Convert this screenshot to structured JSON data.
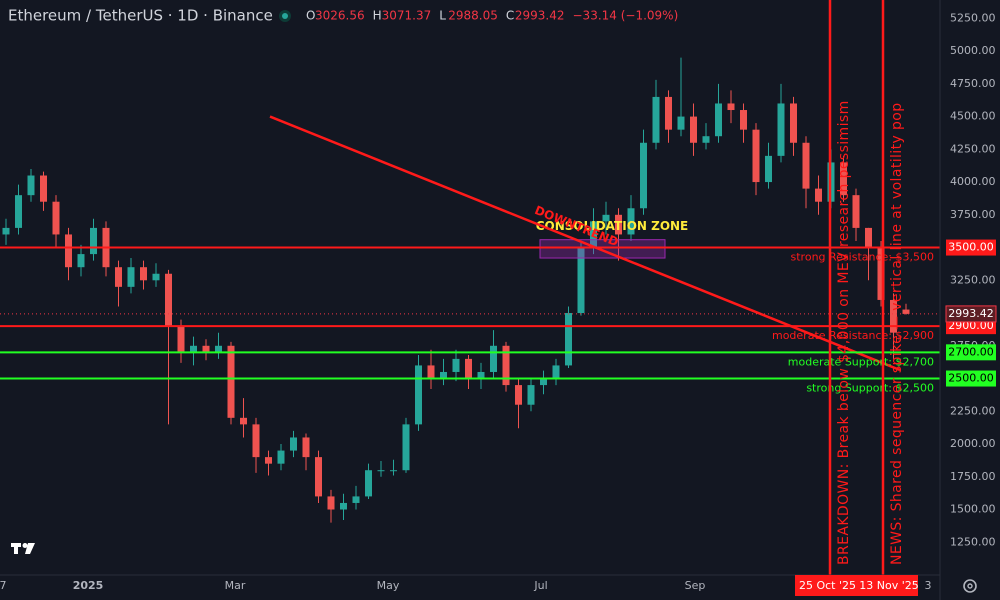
{
  "header": {
    "symbol": "Ethereum / TetherUS · 1D · Binance",
    "ohlc": [
      {
        "label": "O",
        "value": "3026.56"
      },
      {
        "label": "H",
        "value": "3071.37"
      },
      {
        "label": "L",
        "value": "2988.05"
      },
      {
        "label": "C",
        "value": "2993.42"
      }
    ],
    "change": "−33.14 (−1.09%)"
  },
  "chart_data": {
    "type": "candlestick",
    "ylim": [
      1000,
      5390
    ],
    "yticks": [
      {
        "value": 5250,
        "label": "5250.00"
      },
      {
        "value": 5000,
        "label": "5000.00"
      },
      {
        "value": 4750,
        "label": "4750.00"
      },
      {
        "value": 4500,
        "label": "4500.00"
      },
      {
        "value": 4250,
        "label": "4250.00"
      },
      {
        "value": 4000,
        "label": "4000.00"
      },
      {
        "value": 3750,
        "label": "3750.00"
      },
      {
        "value": 3250,
        "label": "3250.00"
      },
      {
        "value": 2750,
        "label": "2750.00"
      },
      {
        "value": 2250,
        "label": "2250.00"
      },
      {
        "value": 2000,
        "label": "2000.00"
      },
      {
        "value": 1750,
        "label": "1750.00"
      },
      {
        "value": 1500,
        "label": "1500.00"
      },
      {
        "value": 1250,
        "label": "1250.00"
      }
    ],
    "x_labels": [
      "7",
      "2025",
      "Mar",
      "May",
      "Jul",
      "Sep",
      "3"
    ],
    "up_color": "#26a69a",
    "down_color": "#ef5350",
    "open": [
      3600,
      3650,
      3900,
      4050,
      3850,
      3600,
      3350,
      3450,
      3650,
      3350,
      3200,
      3350,
      3250,
      3300,
      2900,
      2700,
      2750,
      2700,
      2750,
      2200,
      2150,
      1900,
      1850,
      1950,
      2050,
      1900,
      1600,
      1500,
      1550,
      1600,
      1800,
      1800,
      1800,
      2150,
      2600,
      2500,
      2550,
      2650,
      2500,
      2550,
      2750,
      2450,
      2300,
      2450,
      2500,
      2600,
      3000,
      3500,
      3700,
      3750,
      3600,
      3800,
      4300,
      4650,
      4400,
      4500,
      4300,
      4350,
      4600,
      4550,
      4400,
      4000,
      4200,
      4600,
      4300,
      3950,
      3850,
      4150,
      3900,
      3650,
      3500,
      3100,
      3026.56
    ],
    "high": [
      3720,
      3980,
      4100,
      4080,
      3900,
      3650,
      3520,
      3720,
      3700,
      3400,
      3420,
      3400,
      3380,
      3330,
      2950,
      2820,
      2800,
      2850,
      2780,
      2350,
      2200,
      1950,
      2000,
      2100,
      2080,
      1950,
      1650,
      1620,
      1680,
      1850,
      1870,
      1880,
      2200,
      2680,
      2720,
      2650,
      2720,
      2680,
      2620,
      2870,
      2780,
      2500,
      2500,
      2560,
      2650,
      3050,
      3550,
      3800,
      3850,
      3800,
      3900,
      4400,
      4780,
      4700,
      4950,
      4600,
      4450,
      4750,
      4700,
      4600,
      4450,
      4300,
      4750,
      4650,
      4350,
      4050,
      4250,
      4200,
      3950,
      3650,
      3550,
      3150,
      3071.37
    ],
    "low": [
      3520,
      3600,
      3850,
      3780,
      3500,
      3250,
      3280,
      3400,
      3280,
      3050,
      3150,
      3180,
      3200,
      2150,
      2620,
      2600,
      2640,
      2650,
      2150,
      2050,
      1780,
      1760,
      1800,
      1900,
      1800,
      1550,
      1400,
      1420,
      1500,
      1580,
      1750,
      1760,
      1780,
      2100,
      2420,
      2450,
      2480,
      2420,
      2420,
      2500,
      2400,
      2120,
      2250,
      2380,
      2450,
      2580,
      2980,
      3450,
      3600,
      3400,
      3550,
      3750,
      4250,
      4300,
      4350,
      4200,
      4250,
      4300,
      4450,
      4300,
      3900,
      3950,
      4150,
      4200,
      3800,
      3750,
      3800,
      3850,
      3550,
      3250,
      3050,
      2650,
      2988.05
    ],
    "close": [
      3650,
      3900,
      4050,
      3850,
      3600,
      3350,
      3450,
      3650,
      3350,
      3200,
      3350,
      3250,
      3300,
      2900,
      2700,
      2750,
      2700,
      2750,
      2200,
      2150,
      1900,
      1850,
      1950,
      2050,
      1900,
      1600,
      1500,
      1550,
      1600,
      1800,
      1800,
      1800,
      2150,
      2600,
      2500,
      2550,
      2650,
      2500,
      2550,
      2750,
      2450,
      2300,
      2450,
      2500,
      2600,
      3000,
      3500,
      3700,
      3750,
      3600,
      3800,
      4300,
      4650,
      4400,
      4500,
      4300,
      4350,
      4600,
      4550,
      4400,
      4000,
      4200,
      4600,
      4300,
      3950,
      3850,
      4150,
      3900,
      3650,
      3500,
      3100,
      2850,
      2993.42
    ],
    "last_price": {
      "value": 2993.42,
      "label": "2993.42"
    },
    "levels": [
      {
        "value": 3500,
        "label": "3500.00",
        "note": "strong Resistance: $3,500",
        "color": "#ff1a1a"
      },
      {
        "value": 2900,
        "label": "2900.00",
        "note": "moderate Resistance: $2,900",
        "color": "#ff1a1a"
      },
      {
        "value": 2700,
        "label": "2700.00",
        "note": "moderate Support: $2,700",
        "color": "#22ff22"
      },
      {
        "value": 2500,
        "label": "2500.00",
        "note": "strong Support: $2,500",
        "color": "#22ff22"
      }
    ],
    "zone": {
      "label": "CONSOLIDATION ZONE",
      "top": 3560,
      "bottom": 3420
    },
    "trendline": {
      "label": "DOWNTREND",
      "start": 4500,
      "end": 2565
    },
    "events": [
      {
        "label": "BREAKDOWN: Break below $4,000 on MEV research pessimism",
        "date": "25 Oct '25"
      },
      {
        "label": "NEWS: Shared sequencer spike — vertical line at volatility pop",
        "date": "13 Nov '25"
      }
    ]
  }
}
